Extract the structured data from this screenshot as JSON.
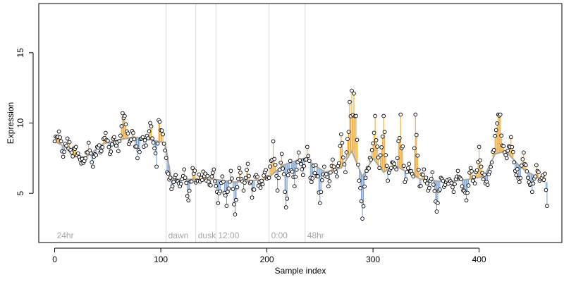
{
  "chart_data": {
    "type": "scatter",
    "title": "",
    "xlabel": "Sample index",
    "ylabel": "Expression",
    "xlim": [
      -15,
      478
    ],
    "ylim": [
      1.5,
      18.5
    ],
    "x_ticks": [
      0,
      100,
      200,
      300,
      400
    ],
    "y_ticks": [
      5,
      10,
      15
    ],
    "grid": false,
    "legend": "none",
    "colors": {
      "fit_line": "#a8a8a8",
      "above_fit": "#f0a01e",
      "below_fit": "#6f9bd6",
      "point_fill": "#ffffff",
      "point_stroke": "#000000",
      "region_line": "#d9d9d9",
      "region_text": "#a6a6a6"
    },
    "regions": [
      {
        "label": "24hr",
        "start": 0
      },
      {
        "label": "dawn",
        "start": 105
      },
      {
        "label": "dusk",
        "start": 133
      },
      {
        "label": "12:00",
        "start": 152
      },
      {
        "label": "0:00",
        "start": 202
      },
      {
        "label": "48hr",
        "start": 236
      }
    ],
    "fit_knots": [
      [
        0,
        8.7
      ],
      [
        10,
        8.3
      ],
      [
        18,
        7.6
      ],
      [
        30,
        7.6
      ],
      [
        45,
        8.5
      ],
      [
        60,
        8.8
      ],
      [
        75,
        9.0
      ],
      [
        90,
        8.8
      ],
      [
        104,
        8.6
      ],
      [
        110,
        6.0
      ],
      [
        130,
        6.0
      ],
      [
        150,
        6.0
      ],
      [
        170,
        5.8
      ],
      [
        200,
        6.0
      ],
      [
        215,
        7.0
      ],
      [
        235,
        7.5
      ],
      [
        255,
        6.5
      ],
      [
        270,
        6.8
      ],
      [
        280,
        8.0
      ],
      [
        290,
        6.2
      ],
      [
        300,
        7.5
      ],
      [
        310,
        6.5
      ],
      [
        320,
        7.0
      ],
      [
        330,
        6.6
      ],
      [
        345,
        6.0
      ],
      [
        370,
        5.8
      ],
      [
        390,
        6.0
      ],
      [
        405,
        6.2
      ],
      [
        415,
        7.8
      ],
      [
        425,
        8.0
      ],
      [
        440,
        6.8
      ],
      [
        462,
        5.8
      ]
    ],
    "anchors": [
      [
        0,
        8.7
      ],
      [
        4,
        9.4
      ],
      [
        8,
        7.6
      ],
      [
        12,
        8.9
      ],
      [
        16,
        7.9
      ],
      [
        20,
        8.3
      ],
      [
        24,
        7.4
      ],
      [
        28,
        7.3
      ],
      [
        32,
        8.6
      ],
      [
        36,
        6.9
      ],
      [
        40,
        8.3
      ],
      [
        44,
        8.0
      ],
      [
        48,
        9.3
      ],
      [
        52,
        7.8
      ],
      [
        56,
        9.0
      ],
      [
        60,
        8.0
      ],
      [
        64,
        10.7
      ],
      [
        66,
        10.5
      ],
      [
        70,
        8.5
      ],
      [
        74,
        9.3
      ],
      [
        78,
        7.5
      ],
      [
        82,
        8.9
      ],
      [
        86,
        8.4
      ],
      [
        90,
        10.0
      ],
      [
        94,
        8.2
      ],
      [
        96,
        6.9
      ],
      [
        98,
        10.2
      ],
      [
        102,
        9.2
      ],
      [
        106,
        6.5
      ],
      [
        110,
        5.3
      ],
      [
        114,
        6.3
      ],
      [
        118,
        5.5
      ],
      [
        122,
        6.7
      ],
      [
        126,
        4.5
      ],
      [
        130,
        6.8
      ],
      [
        134,
        5.9
      ],
      [
        138,
        6.1
      ],
      [
        142,
        6.4
      ],
      [
        146,
        5.6
      ],
      [
        150,
        6.7
      ],
      [
        154,
        4.3
      ],
      [
        158,
        6.2
      ],
      [
        162,
        4.1
      ],
      [
        166,
        6.6
      ],
      [
        170,
        3.5
      ],
      [
        174,
        6.8
      ],
      [
        178,
        5.2
      ],
      [
        182,
        7.1
      ],
      [
        186,
        4.7
      ],
      [
        190,
        6.3
      ],
      [
        194,
        5.4
      ],
      [
        198,
        6.5
      ],
      [
        202,
        6.1
      ],
      [
        206,
        8.7
      ],
      [
        210,
        5.2
      ],
      [
        214,
        7.8
      ],
      [
        218,
        4.0
      ],
      [
        222,
        7.3
      ],
      [
        226,
        5.5
      ],
      [
        230,
        7.9
      ],
      [
        234,
        6.3
      ],
      [
        238,
        8.3
      ],
      [
        242,
        5.8
      ],
      [
        246,
        7.0
      ],
      [
        250,
        4.3
      ],
      [
        254,
        6.9
      ],
      [
        258,
        5.5
      ],
      [
        262,
        7.4
      ],
      [
        266,
        6.2
      ],
      [
        270,
        9.2
      ],
      [
        274,
        6.5
      ],
      [
        278,
        11.5
      ],
      [
        280,
        12.3
      ],
      [
        282,
        12.1
      ],
      [
        284,
        10.5
      ],
      [
        287,
        5.9
      ],
      [
        290,
        3.2
      ],
      [
        294,
        6.6
      ],
      [
        298,
        7.4
      ],
      [
        302,
        10.5
      ],
      [
        306,
        6.8
      ],
      [
        310,
        10.5
      ],
      [
        314,
        5.9
      ],
      [
        318,
        7.2
      ],
      [
        322,
        6.7
      ],
      [
        326,
        10.6
      ],
      [
        330,
        5.8
      ],
      [
        334,
        7.1
      ],
      [
        338,
        6.2
      ],
      [
        340,
        10.6
      ],
      [
        344,
        5.5
      ],
      [
        348,
        6.7
      ],
      [
        352,
        5.2
      ],
      [
        356,
        6.5
      ],
      [
        360,
        3.7
      ],
      [
        364,
        6.1
      ],
      [
        368,
        5.6
      ],
      [
        372,
        6.0
      ],
      [
        376,
        5.1
      ],
      [
        380,
        6.6
      ],
      [
        384,
        5.5
      ],
      [
        388,
        4.5
      ],
      [
        392,
        6.8
      ],
      [
        396,
        5.7
      ],
      [
        400,
        8.3
      ],
      [
        404,
        6.0
      ],
      [
        408,
        5.6
      ],
      [
        412,
        7.2
      ],
      [
        416,
        9.5
      ],
      [
        418,
        10.6
      ],
      [
        420,
        10.6
      ],
      [
        422,
        8.4
      ],
      [
        426,
        7.5
      ],
      [
        430,
        9.0
      ],
      [
        434,
        6.6
      ],
      [
        438,
        5.8
      ],
      [
        442,
        7.9
      ],
      [
        446,
        6.1
      ],
      [
        450,
        5.1
      ],
      [
        454,
        7.0
      ],
      [
        458,
        6.0
      ],
      [
        462,
        6.4
      ],
      [
        464,
        4.1
      ]
    ]
  }
}
